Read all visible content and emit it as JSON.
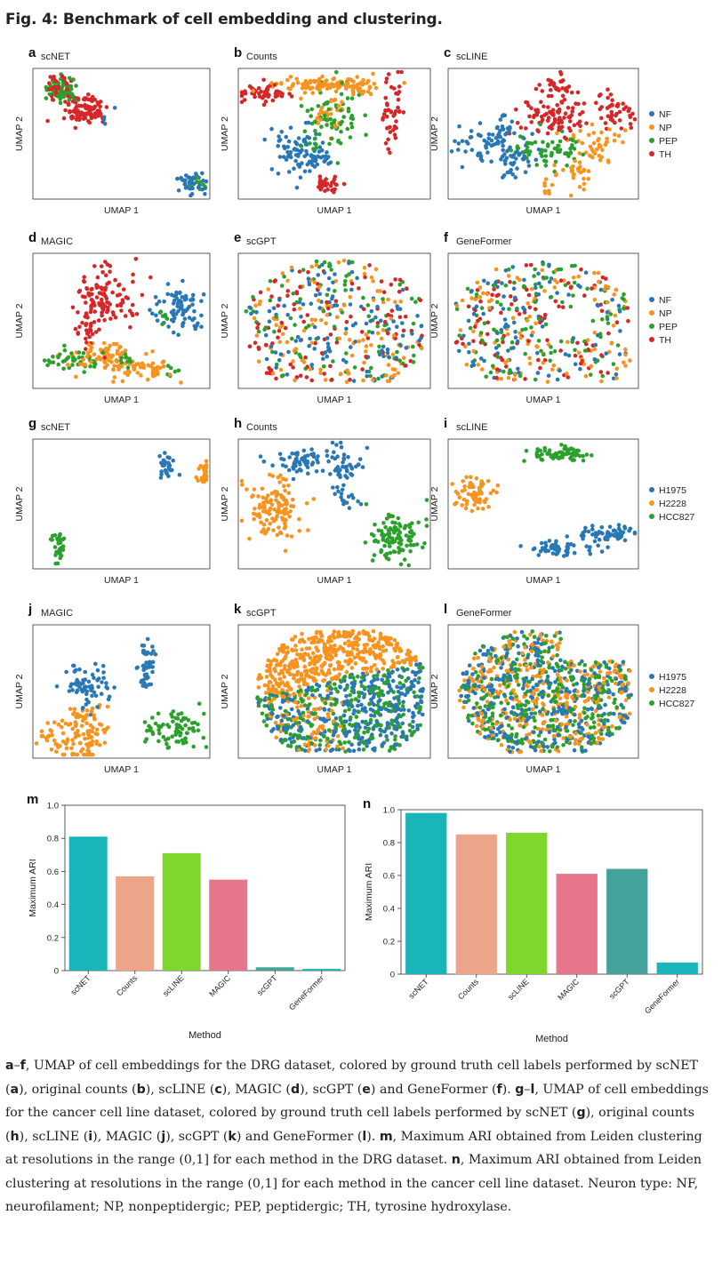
{
  "figure": {
    "title": "Fig. 4: Benchmark of cell embedding and clustering.",
    "axis_x": "UMAP 1",
    "axis_y": "UMAP 2",
    "legend_drg": [
      {
        "label": "NF",
        "color": "#2978b5"
      },
      {
        "label": "NP",
        "color": "#f7931e"
      },
      {
        "label": "PEP",
        "color": "#2ca02c"
      },
      {
        "label": "TH",
        "color": "#d62728"
      }
    ],
    "legend_cancer": [
      {
        "label": "H1975",
        "color": "#2978b5"
      },
      {
        "label": "H2228",
        "color": "#f7931e"
      },
      {
        "label": "HCC827",
        "color": "#2ca02c"
      }
    ],
    "panels": [
      {
        "letter": "a",
        "name": "scNET"
      },
      {
        "letter": "b",
        "name": "Counts"
      },
      {
        "letter": "c",
        "name": "scLINE"
      },
      {
        "letter": "d",
        "name": "MAGIC"
      },
      {
        "letter": "e",
        "name": "scGPT"
      },
      {
        "letter": "f",
        "name": "GeneFormer"
      },
      {
        "letter": "g",
        "name": "scNET"
      },
      {
        "letter": "h",
        "name": "Counts"
      },
      {
        "letter": "i",
        "name": "scLINE"
      },
      {
        "letter": "j",
        "name": "MAGIC"
      },
      {
        "letter": "k",
        "name": "scGPT"
      },
      {
        "letter": "l",
        "name": "GeneFormer"
      }
    ],
    "bar_letters": [
      "m",
      "n"
    ]
  },
  "chart_data": [
    {
      "type": "bar",
      "categories": [
        "scNET",
        "Counts",
        "scLINE",
        "MAGIC",
        "scGPT",
        "GeneFormer"
      ],
      "values": [
        0.81,
        0.57,
        0.71,
        0.55,
        0.02,
        0.01
      ],
      "colors": [
        "#1ab5b8",
        "#eda58a",
        "#7fd62c",
        "#e8768a",
        "#43a39a",
        "#1ab5b8"
      ],
      "title": "",
      "xlabel": "Method",
      "ylabel": "Maximum ARI",
      "ylim": [
        0,
        1.0
      ],
      "yticks": [
        "0",
        "0.2",
        "0.4",
        "0.6",
        "0.8",
        "1.0"
      ]
    },
    {
      "type": "bar",
      "categories": [
        "scNET",
        "Counts",
        "scLINE",
        "MAGIC",
        "scGPT",
        "GeneFormer"
      ],
      "values": [
        0.98,
        0.85,
        0.86,
        0.61,
        0.64,
        0.07
      ],
      "colors": [
        "#1ab5b8",
        "#eda58a",
        "#7fd62c",
        "#e8768a",
        "#43a39a",
        "#1ab5b8"
      ],
      "title": "",
      "xlabel": "Method",
      "ylabel": "Maximum ARI",
      "ylim": [
        0,
        1.0
      ],
      "yticks": [
        "0",
        "0.2",
        "0.4",
        "0.6",
        "0.8",
        "1.0"
      ]
    }
  ],
  "caption": {
    "segments": [
      {
        "t": "a",
        "b": true
      },
      {
        "t": "–",
        "b": false
      },
      {
        "t": "f",
        "b": true
      },
      {
        "t": ", UMAP of cell embeddings for the DRG dataset, colored by ground truth cell labels performed by scNET (",
        "b": false
      },
      {
        "t": "a",
        "b": true
      },
      {
        "t": "), original counts (",
        "b": false
      },
      {
        "t": "b",
        "b": true
      },
      {
        "t": "), scLINE (",
        "b": false
      },
      {
        "t": "c",
        "b": true
      },
      {
        "t": "), MAGIC (",
        "b": false
      },
      {
        "t": "d",
        "b": true
      },
      {
        "t": "), scGPT (",
        "b": false
      },
      {
        "t": "e",
        "b": true
      },
      {
        "t": ") and GeneFormer (",
        "b": false
      },
      {
        "t": "f",
        "b": true
      },
      {
        "t": "). ",
        "b": false
      },
      {
        "t": "g",
        "b": true
      },
      {
        "t": "–",
        "b": false
      },
      {
        "t": "l",
        "b": true
      },
      {
        "t": ", UMAP of cell embeddings for the cancer cell line dataset, colored by ground truth cell labels performed by scNET (",
        "b": false
      },
      {
        "t": "g",
        "b": true
      },
      {
        "t": "), original counts (",
        "b": false
      },
      {
        "t": "h",
        "b": true
      },
      {
        "t": "), scLINE (",
        "b": false
      },
      {
        "t": "i",
        "b": true
      },
      {
        "t": "), MAGIC (",
        "b": false
      },
      {
        "t": "j",
        "b": true
      },
      {
        "t": "), scGPT (",
        "b": false
      },
      {
        "t": "k",
        "b": true
      },
      {
        "t": ") and GeneFormer (",
        "b": false
      },
      {
        "t": "l",
        "b": true
      },
      {
        "t": "). ",
        "b": false
      },
      {
        "t": "m",
        "b": true
      },
      {
        "t": ", Maximum ARI obtained from Leiden clustering at resolutions in the range (0,1] for each method in the DRG dataset. ",
        "b": false
      },
      {
        "t": "n",
        "b": true
      },
      {
        "t": ", Maximum ARI obtained from Leiden clustering at resolutions in the range (0,1] for each method in the cancer cell line dataset. Neuron type: NF, neurofilament; NP, nonpeptidergic; PEP, peptidergic; TH, tyrosine hydroxylase.",
        "b": false
      }
    ]
  }
}
